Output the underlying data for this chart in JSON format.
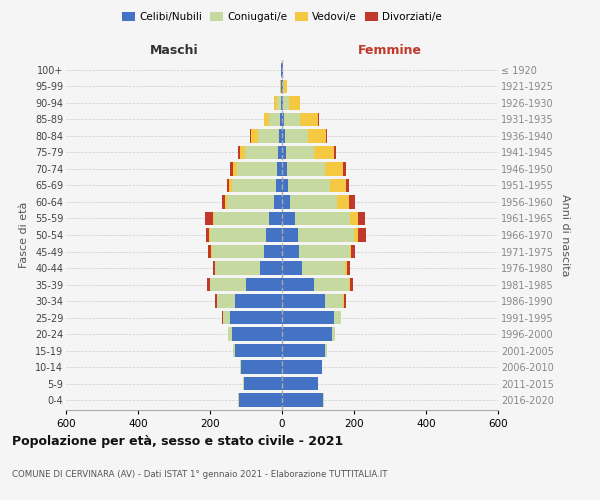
{
  "age_groups": [
    "0-4",
    "5-9",
    "10-14",
    "15-19",
    "20-24",
    "25-29",
    "30-34",
    "35-39",
    "40-44",
    "45-49",
    "50-54",
    "55-59",
    "60-64",
    "65-69",
    "70-74",
    "75-79",
    "80-84",
    "85-89",
    "90-94",
    "95-99",
    "100+"
  ],
  "birth_years": [
    "2016-2020",
    "2011-2015",
    "2006-2010",
    "2001-2005",
    "1996-2000",
    "1991-1995",
    "1986-1990",
    "1981-1985",
    "1976-1980",
    "1971-1975",
    "1966-1970",
    "1961-1965",
    "1956-1960",
    "1951-1955",
    "1946-1950",
    "1941-1945",
    "1936-1940",
    "1931-1935",
    "1926-1930",
    "1921-1925",
    "≤ 1920"
  ],
  "male_celibe": [
    120,
    105,
    115,
    130,
    140,
    145,
    130,
    100,
    60,
    50,
    45,
    35,
    22,
    18,
    15,
    12,
    8,
    5,
    3,
    2,
    2
  ],
  "male_coniugato": [
    1,
    2,
    3,
    5,
    10,
    20,
    50,
    100,
    125,
    145,
    155,
    155,
    130,
    120,
    110,
    90,
    60,
    30,
    10,
    2,
    0
  ],
  "male_vedovo": [
    0,
    0,
    0,
    0,
    0,
    0,
    0,
    0,
    0,
    1,
    2,
    3,
    5,
    8,
    12,
    15,
    18,
    15,
    10,
    2,
    0
  ],
  "male_divorziato": [
    0,
    0,
    0,
    0,
    0,
    2,
    5,
    8,
    8,
    10,
    10,
    20,
    10,
    8,
    8,
    5,
    3,
    0,
    0,
    0,
    0
  ],
  "female_celibe": [
    115,
    100,
    110,
    120,
    140,
    145,
    120,
    90,
    55,
    48,
    45,
    35,
    22,
    18,
    15,
    10,
    8,
    5,
    4,
    2,
    2
  ],
  "female_coniugato": [
    1,
    1,
    2,
    4,
    8,
    18,
    50,
    95,
    120,
    140,
    155,
    155,
    130,
    115,
    105,
    80,
    65,
    45,
    15,
    3,
    0
  ],
  "female_vedovo": [
    0,
    0,
    0,
    0,
    0,
    0,
    2,
    3,
    5,
    5,
    12,
    20,
    35,
    45,
    50,
    55,
    50,
    50,
    30,
    8,
    2
  ],
  "female_divorziato": [
    0,
    0,
    0,
    0,
    0,
    2,
    5,
    8,
    10,
    10,
    20,
    20,
    15,
    8,
    8,
    5,
    2,
    2,
    0,
    0,
    0
  ],
  "color_celibe": "#4472c4",
  "color_coniugato": "#c5d9a0",
  "color_vedovo": "#f5c842",
  "color_divorziato": "#c0392b",
  "title": "Popolazione per età, sesso e stato civile - 2021",
  "subtitle": "COMUNE DI CERVINARA (AV) - Dati ISTAT 1° gennaio 2021 - Elaborazione TUTTITALIA.IT",
  "label_maschi": "Maschi",
  "label_femmine": "Femmine",
  "ylabel_left": "Fasce di età",
  "ylabel_right": "Anni di nascita",
  "xlim": 600,
  "background_color": "#f5f5f5",
  "grid_color": "#cccccc"
}
